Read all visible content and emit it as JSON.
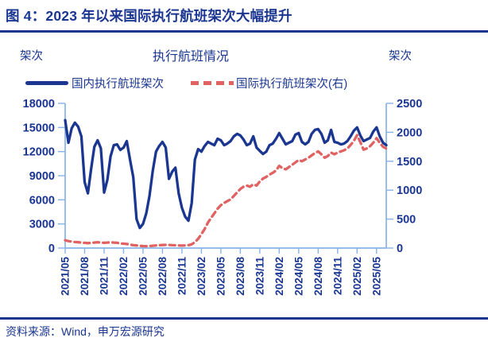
{
  "header": {
    "title": "图 4：2023 年以来国际执行航班架次大幅提升"
  },
  "chart": {
    "title": "执行航班情况",
    "left_axis_unit": "架次",
    "right_axis_unit": "架次",
    "legend": [
      {
        "label": "国内执行航班架次",
        "style": "solid",
        "color": "#1A3690"
      },
      {
        "label": "国际执行航班架次(右)",
        "style": "dashed",
        "color": "#E06262"
      }
    ]
  },
  "colors": {
    "navy": "#1A3690",
    "red": "#E06262",
    "axis_blue": "#87B3E6",
    "background": "#FFFFFF"
  },
  "chart_data": {
    "type": "line",
    "title": "执行航班情况",
    "x_start": "2021/05",
    "x_step_months": 0.5,
    "x_span_months": 49.5,
    "x_tick_labels": [
      "2021/05",
      "2021/08",
      "2021/11",
      "2022/02",
      "2022/05",
      "2022/08",
      "2022/11",
      "2023/02",
      "2023/05",
      "2023/08",
      "2023/11",
      "2024/02",
      "2024/05",
      "2024/08",
      "2024/11",
      "2025/02",
      "2025/05"
    ],
    "x_tick_months": [
      0,
      3,
      6,
      9,
      12,
      15,
      18,
      21,
      24,
      27,
      30,
      33,
      36,
      39,
      42,
      45,
      48
    ],
    "left_axis": {
      "label": "架次",
      "range": [
        0,
        18000
      ],
      "ticks": [
        0,
        3000,
        6000,
        9000,
        12000,
        15000,
        18000
      ]
    },
    "right_axis": {
      "label": "架次",
      "range": [
        0,
        2500
      ],
      "ticks": [
        0,
        500,
        1000,
        1500,
        2000,
        2500
      ]
    },
    "grid": false,
    "legend_position": "top",
    "series": [
      {
        "name": "国内执行航班架次",
        "axis": "left",
        "style": "solid",
        "color": "#1A3690",
        "values": [
          15900,
          13100,
          14900,
          15600,
          15100,
          13900,
          8200,
          6800,
          9800,
          12600,
          13400,
          12400,
          6900,
          8500,
          11400,
          12800,
          12900,
          12200,
          12500,
          13300,
          11000,
          8800,
          3600,
          2500,
          3000,
          4300,
          6500,
          9600,
          12000,
          12700,
          13200,
          12500,
          8600,
          9500,
          10000,
          6800,
          5000,
          3900,
          3400,
          5600,
          11000,
          12300,
          12000,
          12700,
          13200,
          13000,
          12800,
          13600,
          13400,
          12800,
          13000,
          13300,
          13900,
          14200,
          14000,
          13500,
          12800,
          13000,
          13900,
          12500,
          12100,
          11700,
          12000,
          12800,
          13000,
          13600,
          14300,
          13600,
          12900,
          13100,
          13300,
          14100,
          14300,
          13200,
          12900,
          13200,
          14200,
          14700,
          14800,
          14200,
          13100,
          13400,
          14700,
          13200,
          13100,
          12900,
          13000,
          13300,
          13900,
          14600,
          15000,
          14000,
          13300,
          13500,
          13700,
          14500,
          15000,
          13900,
          13100,
          12800
        ]
      },
      {
        "name": "国际执行航班架次(右)",
        "axis": "right",
        "style": "dashed",
        "color": "#E06262",
        "values": [
          135,
          120,
          110,
          105,
          100,
          95,
          90,
          85,
          90,
          95,
          100,
          95,
          90,
          95,
          100,
          95,
          90,
          80,
          75,
          70,
          60,
          50,
          45,
          38,
          35,
          33,
          35,
          40,
          45,
          50,
          52,
          55,
          53,
          50,
          48,
          45,
          42,
          45,
          50,
          65,
          100,
          160,
          240,
          330,
          440,
          520,
          600,
          680,
          740,
          780,
          810,
          840,
          900,
          960,
          1020,
          1060,
          1080,
          1060,
          1100,
          1080,
          1150,
          1200,
          1230,
          1270,
          1300,
          1340,
          1420,
          1380,
          1360,
          1400,
          1440,
          1480,
          1520,
          1500,
          1530,
          1560,
          1600,
          1640,
          1670,
          1620,
          1560,
          1590,
          1650,
          1620,
          1650,
          1670,
          1690,
          1720,
          1780,
          1850,
          1950,
          1830,
          1700,
          1720,
          1760,
          1820,
          1900,
          1820,
          1750,
          1720
        ]
      }
    ]
  },
  "footer": {
    "source": "资料来源：Wind，申万宏源研究"
  }
}
